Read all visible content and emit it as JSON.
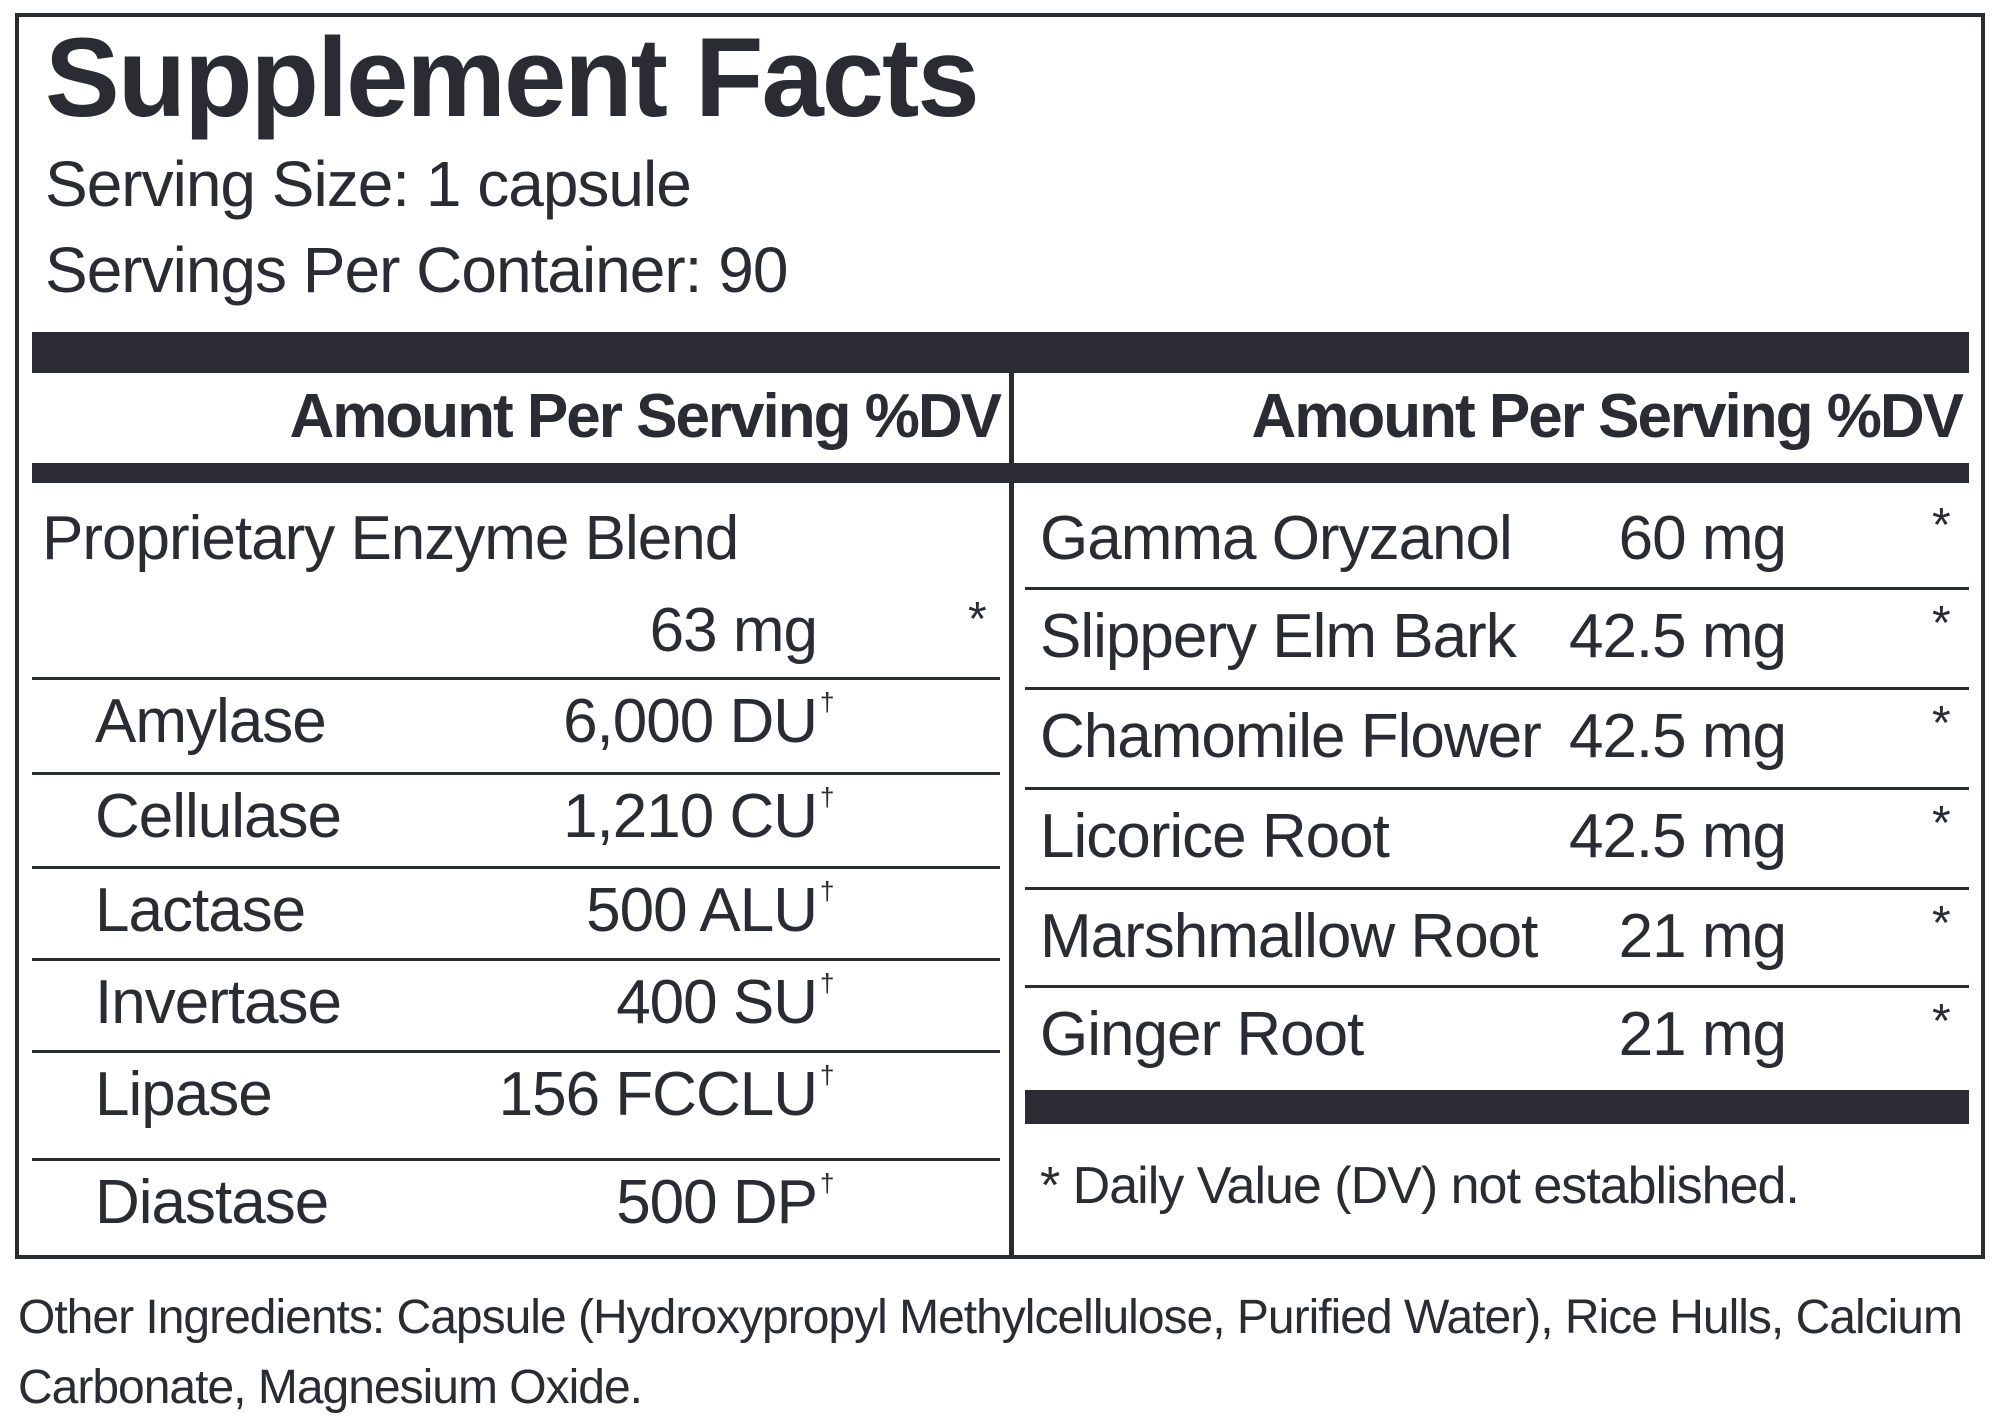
{
  "title": "Supplement Facts",
  "serving_size": "Serving Size: 1 capsule",
  "servings_per_container": "Servings Per Container: 90",
  "left": {
    "header": "Amount Per Serving %DV",
    "blend": {
      "name": "Proprietary Enzyme Blend",
      "amount": "63 mg",
      "dv": "*"
    },
    "rows": [
      {
        "name": "Amylase",
        "amount": "6,000 DU",
        "mark": "†"
      },
      {
        "name": "Cellulase",
        "amount": "1,210 CU",
        "mark": "†"
      },
      {
        "name": "Lactase",
        "amount": "500 ALU",
        "mark": "†"
      },
      {
        "name": "Invertase",
        "amount": "400 SU",
        "mark": "†"
      },
      {
        "name": "Lipase",
        "amount": "156 FCCLU",
        "mark": "†"
      },
      {
        "name": "Diastase",
        "amount": "500 DP",
        "mark": "†"
      }
    ]
  },
  "right": {
    "header": "Amount Per Serving %DV",
    "rows": [
      {
        "name": "Gamma Oryzanol",
        "amount": "60 mg",
        "dv": "*"
      },
      {
        "name": "Slippery Elm Bark",
        "amount": "42.5 mg",
        "dv": "*"
      },
      {
        "name": "Chamomile Flower",
        "amount": "42.5 mg",
        "dv": "*"
      },
      {
        "name": "Licorice Root",
        "amount": "42.5 mg",
        "dv": "*"
      },
      {
        "name": "Marshmallow Root",
        "amount": "21 mg",
        "dv": "*"
      },
      {
        "name": "Ginger Root",
        "amount": "21 mg",
        "dv": "*"
      }
    ],
    "footnote": "* Daily Value (DV) not established."
  },
  "other_ingredients": "Other Ingredients: Capsule (Hydroxypropyl Methylcellulose, Purified Water), Rice Hulls, Calcium Carbonate, Magnesium Oxide."
}
